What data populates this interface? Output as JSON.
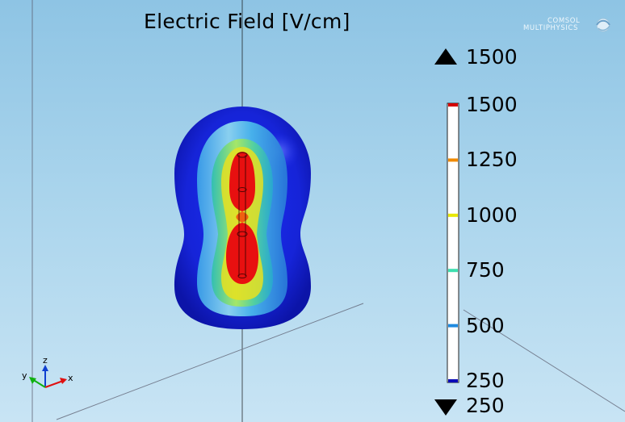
{
  "plot": {
    "title": "Electric Field [V/cm]",
    "logo": {
      "line1": "COMSOL",
      "line2": "MULTIPHYSICS"
    }
  },
  "colorbar": {
    "max_label": "1500",
    "min_label": "250",
    "ticks": [
      {
        "label": "1500",
        "color": "#d40000"
      },
      {
        "label": "1250",
        "color": "#f08a00"
      },
      {
        "label": "1000",
        "color": "#e8e800"
      },
      {
        "label": "750",
        "color": "#3ee0b0"
      },
      {
        "label": "500",
        "color": "#1e8ae0"
      },
      {
        "label": "250",
        "color": "#0a0ab8"
      }
    ]
  },
  "axes": {
    "x": "x",
    "y": "y",
    "z": "z",
    "colors": {
      "x": "#e01010",
      "y": "#10b010",
      "z": "#1040d0"
    }
  },
  "colors": {
    "background_top": "#8ec4e4",
    "background_bottom": "#c8e4f4"
  }
}
